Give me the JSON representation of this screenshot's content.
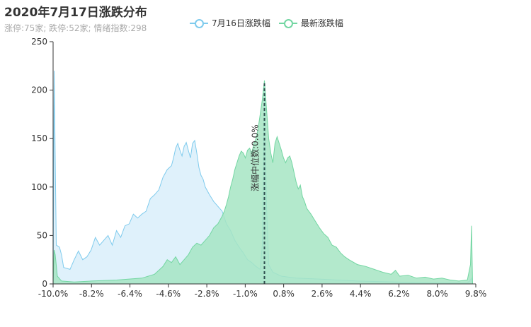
{
  "title": "2020年7月17日涨跌分布",
  "subtitle": "涨停:75家; 跌停:52家; 情绪指数:298",
  "colors": {
    "prev": "#7fcbed",
    "prev_fill": "#dff1fb",
    "curr": "#73d6a2",
    "curr_fill": "#a6e5c3",
    "median": "#2f4f4f",
    "axis": "#333333"
  },
  "chart_data": {
    "type": "area",
    "title": "2020年7月17日涨跌分布",
    "xlabel": "",
    "ylabel": "",
    "xlim": [
      -10.0,
      10.0
    ],
    "ylim": [
      0,
      250
    ],
    "yticks": [
      0,
      50,
      100,
      150,
      200,
      250
    ],
    "xticks": [
      "-10.0%",
      "-8.2%",
      "-6.4%",
      "-4.6%",
      "-2.8%",
      "-1.0%",
      "0.8%",
      "2.6%",
      "4.4%",
      "6.2%",
      "8.0%",
      "9.8%"
    ],
    "legend": "top-center",
    "median_label": "涨幅中位数:0.0%",
    "median_x": 0.0,
    "series": [
      {
        "name": "7月16日涨跌幅",
        "points": [
          [
            -10.0,
            0
          ],
          [
            -9.95,
            220
          ],
          [
            -9.9,
            130
          ],
          [
            -9.85,
            40
          ],
          [
            -9.7,
            38
          ],
          [
            -9.6,
            30
          ],
          [
            -9.5,
            17
          ],
          [
            -9.2,
            15
          ],
          [
            -9.0,
            25
          ],
          [
            -8.8,
            34
          ],
          [
            -8.6,
            25
          ],
          [
            -8.4,
            28
          ],
          [
            -8.2,
            35
          ],
          [
            -8.0,
            48
          ],
          [
            -7.8,
            40
          ],
          [
            -7.6,
            45
          ],
          [
            -7.4,
            50
          ],
          [
            -7.2,
            40
          ],
          [
            -7.0,
            55
          ],
          [
            -6.8,
            48
          ],
          [
            -6.6,
            60
          ],
          [
            -6.4,
            62
          ],
          [
            -6.2,
            72
          ],
          [
            -6.0,
            68
          ],
          [
            -5.8,
            72
          ],
          [
            -5.6,
            75
          ],
          [
            -5.4,
            88
          ],
          [
            -5.2,
            92
          ],
          [
            -5.0,
            97
          ],
          [
            -4.8,
            110
          ],
          [
            -4.6,
            118
          ],
          [
            -4.4,
            122
          ],
          [
            -4.3,
            130
          ],
          [
            -4.2,
            140
          ],
          [
            -4.1,
            145
          ],
          [
            -4.0,
            138
          ],
          [
            -3.9,
            132
          ],
          [
            -3.8,
            142
          ],
          [
            -3.7,
            146
          ],
          [
            -3.6,
            138
          ],
          [
            -3.5,
            130
          ],
          [
            -3.4,
            145
          ],
          [
            -3.3,
            148
          ],
          [
            -3.2,
            135
          ],
          [
            -3.1,
            120
          ],
          [
            -3.0,
            112
          ],
          [
            -2.9,
            108
          ],
          [
            -2.8,
            100
          ],
          [
            -2.6,
            92
          ],
          [
            -2.4,
            85
          ],
          [
            -2.2,
            80
          ],
          [
            -2.0,
            75
          ],
          [
            -1.8,
            62
          ],
          [
            -1.6,
            55
          ],
          [
            -1.4,
            45
          ],
          [
            -1.2,
            38
          ],
          [
            -1.0,
            32
          ],
          [
            -0.8,
            25
          ],
          [
            -0.6,
            22
          ],
          [
            -0.4,
            18
          ],
          [
            -0.2,
            15
          ],
          [
            -0.1,
            40
          ],
          [
            0.0,
            205
          ],
          [
            0.1,
            80
          ],
          [
            0.2,
            20
          ],
          [
            0.4,
            12
          ],
          [
            0.8,
            8
          ],
          [
            1.5,
            6
          ],
          [
            2.6,
            5
          ],
          [
            4.4,
            3
          ],
          [
            6.2,
            2
          ],
          [
            8.0,
            1
          ],
          [
            9.6,
            1
          ],
          [
            9.75,
            4
          ],
          [
            9.8,
            6
          ],
          [
            9.85,
            0
          ]
        ]
      },
      {
        "name": "最新涨跌幅",
        "points": [
          [
            -10.0,
            0
          ],
          [
            -9.95,
            35
          ],
          [
            -9.9,
            30
          ],
          [
            -9.8,
            8
          ],
          [
            -9.6,
            3
          ],
          [
            -9.0,
            2
          ],
          [
            -8.2,
            3
          ],
          [
            -7.0,
            4
          ],
          [
            -6.4,
            5
          ],
          [
            -5.8,
            6
          ],
          [
            -5.2,
            10
          ],
          [
            -4.8,
            18
          ],
          [
            -4.6,
            25
          ],
          [
            -4.4,
            22
          ],
          [
            -4.2,
            28
          ],
          [
            -4.0,
            20
          ],
          [
            -3.8,
            25
          ],
          [
            -3.6,
            30
          ],
          [
            -3.4,
            38
          ],
          [
            -3.2,
            42
          ],
          [
            -3.0,
            40
          ],
          [
            -2.8,
            45
          ],
          [
            -2.6,
            50
          ],
          [
            -2.4,
            58
          ],
          [
            -2.2,
            62
          ],
          [
            -2.0,
            70
          ],
          [
            -1.9,
            75
          ],
          [
            -1.8,
            82
          ],
          [
            -1.7,
            90
          ],
          [
            -1.6,
            100
          ],
          [
            -1.5,
            108
          ],
          [
            -1.4,
            118
          ],
          [
            -1.3,
            125
          ],
          [
            -1.2,
            132
          ],
          [
            -1.1,
            137
          ],
          [
            -1.0,
            135
          ],
          [
            -0.9,
            130
          ],
          [
            -0.8,
            138
          ],
          [
            -0.7,
            140
          ],
          [
            -0.6,
            135
          ],
          [
            -0.5,
            145
          ],
          [
            -0.4,
            150
          ],
          [
            -0.3,
            160
          ],
          [
            -0.2,
            175
          ],
          [
            -0.1,
            190
          ],
          [
            0.0,
            210
          ],
          [
            0.1,
            180
          ],
          [
            0.2,
            150
          ],
          [
            0.3,
            135
          ],
          [
            0.4,
            125
          ],
          [
            0.5,
            145
          ],
          [
            0.6,
            152
          ],
          [
            0.7,
            145
          ],
          [
            0.8,
            138
          ],
          [
            0.9,
            130
          ],
          [
            1.0,
            125
          ],
          [
            1.1,
            130
          ],
          [
            1.2,
            132
          ],
          [
            1.3,
            125
          ],
          [
            1.4,
            115
          ],
          [
            1.5,
            105
          ],
          [
            1.6,
            98
          ],
          [
            1.7,
            102
          ],
          [
            1.8,
            90
          ],
          [
            1.9,
            85
          ],
          [
            2.0,
            78
          ],
          [
            2.2,
            72
          ],
          [
            2.4,
            65
          ],
          [
            2.6,
            58
          ],
          [
            2.8,
            52
          ],
          [
            3.0,
            48
          ],
          [
            3.2,
            40
          ],
          [
            3.4,
            38
          ],
          [
            3.6,
            32
          ],
          [
            3.8,
            28
          ],
          [
            4.0,
            25
          ],
          [
            4.4,
            20
          ],
          [
            4.8,
            18
          ],
          [
            5.2,
            15
          ],
          [
            5.6,
            12
          ],
          [
            6.0,
            10
          ],
          [
            6.2,
            14
          ],
          [
            6.4,
            8
          ],
          [
            6.8,
            9
          ],
          [
            7.2,
            6
          ],
          [
            7.6,
            7
          ],
          [
            8.0,
            5
          ],
          [
            8.4,
            6
          ],
          [
            8.8,
            4
          ],
          [
            9.2,
            3
          ],
          [
            9.6,
            4
          ],
          [
            9.75,
            20
          ],
          [
            9.8,
            60
          ],
          [
            9.85,
            0
          ]
        ]
      }
    ]
  }
}
